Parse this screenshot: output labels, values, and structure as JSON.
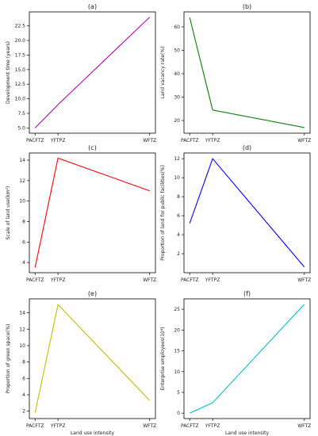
{
  "chart_data": [
    {
      "type": "line",
      "title": "(a)",
      "xlabel": "",
      "ylabel": "Development time (years)",
      "categories": [
        "PACFTZ",
        "YFTPZ",
        "WFTZ"
      ],
      "x": [
        0,
        1,
        5
      ],
      "values": [
        5.0,
        9.0,
        24.0
      ],
      "ylim": [
        4.1,
        24.9
      ],
      "yticks": [
        "5.0",
        "7.5",
        "10.0",
        "12.5",
        "15.0",
        "17.5",
        "20.0",
        "22.5"
      ],
      "ytick_values": [
        5.0,
        7.5,
        10.0,
        12.5,
        15.0,
        17.5,
        20.0,
        22.5
      ],
      "color": "#bf00bf",
      "grid": false
    },
    {
      "type": "line",
      "title": "(b)",
      "xlabel": "",
      "ylabel": "Land vacancy rate(%)",
      "categories": [
        "PACFTZ",
        "YFTPZ",
        "WFTZ"
      ],
      "x": [
        0,
        1,
        5
      ],
      "values": [
        64.0,
        24.5,
        17.0
      ],
      "ylim": [
        14.6,
        66.4
      ],
      "yticks": [
        "20",
        "30",
        "40",
        "50",
        "60"
      ],
      "ytick_values": [
        20,
        30,
        40,
        50,
        60
      ],
      "color": "#008000",
      "grid": false
    },
    {
      "type": "line",
      "title": "(c)",
      "xlabel": "",
      "ylabel": "Scale of land use(km²)",
      "categories": [
        "PACFTZ",
        "YFTPZ",
        "WFTZ"
      ],
      "x": [
        0,
        1,
        5
      ],
      "values": [
        3.5,
        14.2,
        11.0
      ],
      "ylim": [
        3.0,
        14.7
      ],
      "yticks": [
        "4",
        "6",
        "8",
        "10",
        "12",
        "14"
      ],
      "ytick_values": [
        4,
        6,
        8,
        10,
        12,
        14
      ],
      "color": "#ff0000",
      "grid": false
    },
    {
      "type": "line",
      "title": "(d)",
      "xlabel": "",
      "ylabel": "Proportion of land for public facilities(%)",
      "categories": [
        "PACFTZ",
        "YFTPZ",
        "WFTZ"
      ],
      "x": [
        0,
        1,
        5
      ],
      "values": [
        5.2,
        12.0,
        0.6
      ],
      "ylim": [
        0.0,
        12.6
      ],
      "yticks": [
        "2",
        "4",
        "6",
        "8",
        "10",
        "12"
      ],
      "ytick_values": [
        2,
        4,
        6,
        8,
        10,
        12
      ],
      "color": "#0000ff",
      "grid": false
    },
    {
      "type": "line",
      "title": "(e)",
      "xlabel": "Land use intensity",
      "ylabel": "Proportion of green space(%)",
      "categories": [
        "PACFTZ",
        "YFTPZ",
        "WFTZ"
      ],
      "x": [
        0,
        1,
        5
      ],
      "values": [
        1.8,
        15.0,
        3.3
      ],
      "ylim": [
        1.1,
        15.7
      ],
      "yticks": [
        "2",
        "4",
        "6",
        "8",
        "10",
        "12",
        "14"
      ],
      "ytick_values": [
        2,
        4,
        6,
        8,
        10,
        12,
        14
      ],
      "color": "#bfbf00",
      "grid": false
    },
    {
      "type": "line",
      "title": "(f)",
      "xlabel": "Land use intensity",
      "ylabel": "Enterprise employees(10⁴)",
      "categories": [
        "PACFTZ",
        "YFTPZ",
        "WFTZ"
      ],
      "x": [
        0,
        1,
        5
      ],
      "values": [
        0.0,
        2.5,
        26.2
      ],
      "ylim": [
        -1.3,
        27.5
      ],
      "yticks": [
        "0",
        "5",
        "10",
        "15",
        "20",
        "25"
      ],
      "ytick_values": [
        0,
        5,
        10,
        15,
        20,
        25
      ],
      "color": "#00bfbf",
      "grid": false
    }
  ]
}
